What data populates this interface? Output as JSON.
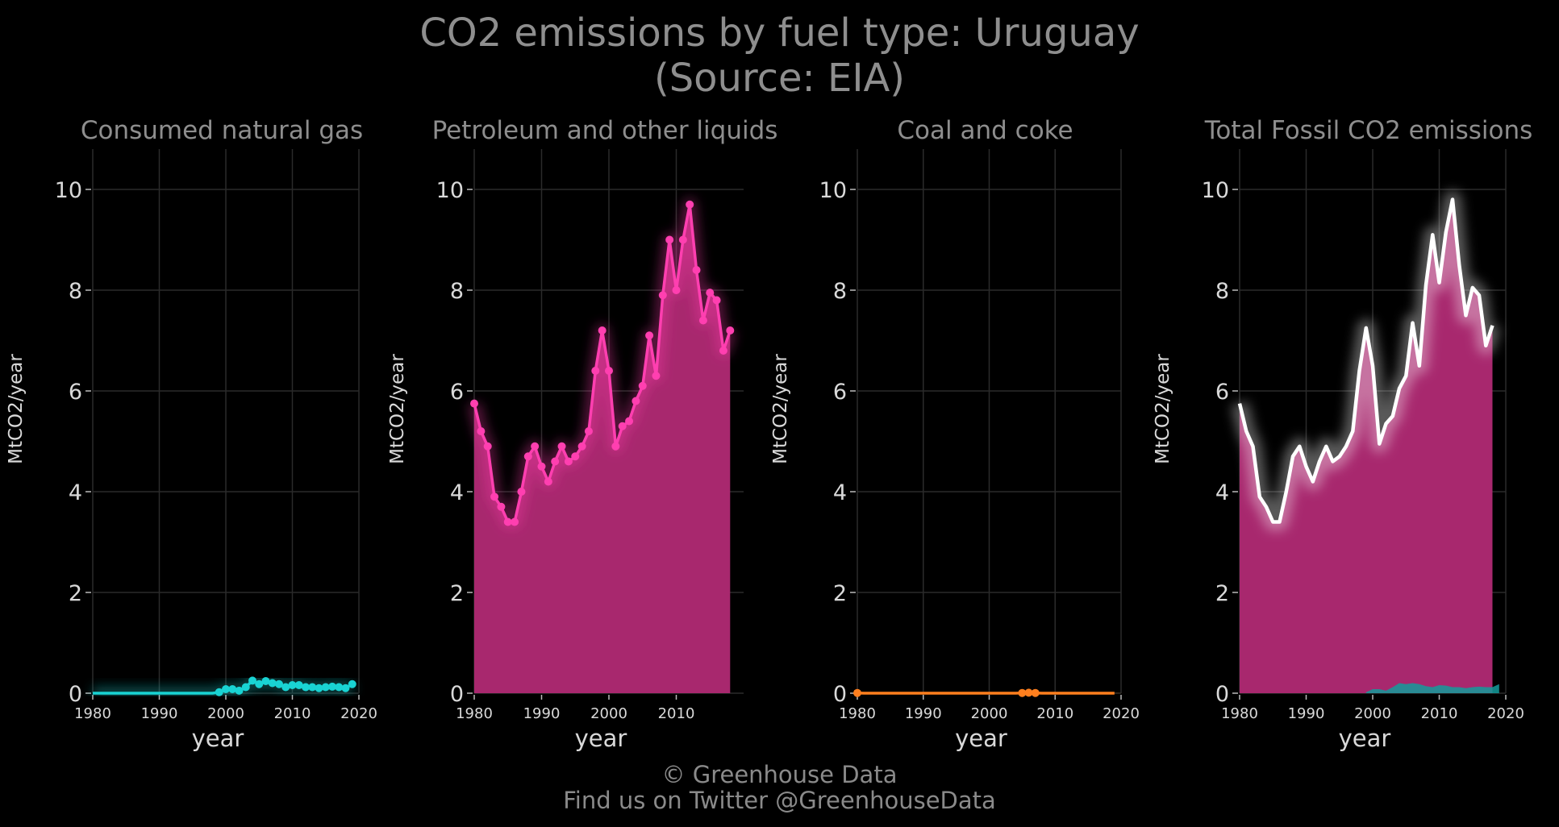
{
  "title_line1": "CO2 emissions by fuel type: Uruguay",
  "title_line2": "(Source: EIA)",
  "footer_line1": "© Greenhouse Data",
  "footer_line2": "Find us on Twitter @GreenhouseData",
  "colors": {
    "background": "#000000",
    "grid": "#2b2b2b",
    "text": "#8a8a8a",
    "tick_text": "#d9d9d9",
    "natural_gas": "#19d3d3",
    "petroleum": "#ff3fb0",
    "petroleum_fill": "#a8286e",
    "coal": "#ff7f1e",
    "total_line": "#ffffff"
  },
  "chart_data": [
    {
      "type": "line",
      "title": "Consumed natural gas",
      "xlabel": "year",
      "ylabel": "MtCO2/year",
      "xlim": [
        1980,
        2020
      ],
      "ylim": [
        0,
        10.8
      ],
      "xticks": [
        1980,
        1990,
        2000,
        2010,
        2020
      ],
      "yticks": [
        0,
        2,
        4,
        6,
        8,
        10
      ],
      "grid": true,
      "series": [
        {
          "color": "#19d3d3",
          "x": [
            1980,
            1981,
            1982,
            1983,
            1984,
            1985,
            1986,
            1987,
            1988,
            1989,
            1990,
            1991,
            1992,
            1993,
            1994,
            1995,
            1996,
            1997,
            1998,
            1999,
            2000,
            2001,
            2002,
            2003,
            2004,
            2005,
            2006,
            2007,
            2008,
            2009,
            2010,
            2011,
            2012,
            2013,
            2014,
            2015,
            2016,
            2017,
            2018,
            2019
          ],
          "y": [
            0,
            0,
            0,
            0,
            0,
            0,
            0,
            0,
            0,
            0,
            0,
            0,
            0,
            0,
            0,
            0,
            0,
            0,
            0,
            0.02,
            0.08,
            0.08,
            0.05,
            0.12,
            0.25,
            0.18,
            0.24,
            0.2,
            0.18,
            0.12,
            0.16,
            0.16,
            0.12,
            0.12,
            0.1,
            0.12,
            0.13,
            0.12,
            0.1,
            0.18
          ]
        }
      ]
    },
    {
      "type": "area",
      "title": "Petroleum and other liquids",
      "xlabel": "year",
      "ylabel": "MtCO2/year",
      "xlim": [
        1980,
        2020
      ],
      "ylim": [
        0,
        10.8
      ],
      "xticks": [
        1980,
        1990,
        2000,
        2010
      ],
      "yticks": [
        0,
        2,
        4,
        6,
        8,
        10
      ],
      "grid": true,
      "series": [
        {
          "color": "#ff3fb0",
          "x": [
            1980,
            1981,
            1982,
            1983,
            1984,
            1985,
            1986,
            1987,
            1988,
            1989,
            1990,
            1991,
            1992,
            1993,
            1994,
            1995,
            1996,
            1997,
            1998,
            1999,
            2000,
            2001,
            2002,
            2003,
            2004,
            2005,
            2006,
            2007,
            2008,
            2009,
            2010,
            2011,
            2012,
            2013,
            2014,
            2015,
            2016,
            2017,
            2018
          ],
          "y": [
            5.75,
            5.2,
            4.9,
            3.9,
            3.7,
            3.4,
            3.4,
            4.0,
            4.7,
            4.9,
            4.5,
            4.2,
            4.6,
            4.9,
            4.6,
            4.7,
            4.9,
            5.2,
            6.4,
            7.2,
            6.4,
            4.9,
            5.3,
            5.4,
            5.8,
            6.1,
            7.1,
            6.3,
            7.9,
            9.0,
            8.0,
            9.0,
            9.7,
            8.4,
            7.4,
            7.95,
            7.8,
            6.8,
            7.2
          ]
        }
      ]
    },
    {
      "type": "line",
      "title": "Coal and coke",
      "xlabel": "year",
      "ylabel": "MtCO2/year",
      "xlim": [
        1980,
        2020
      ],
      "ylim": [
        0,
        10.8
      ],
      "xticks": [
        1980,
        1990,
        2000,
        2010,
        2020
      ],
      "yticks": [
        0,
        2,
        4,
        6,
        8,
        10
      ],
      "grid": true,
      "series": [
        {
          "color": "#ff7f1e",
          "x": [
            1980,
            1981,
            1982,
            1983,
            1984,
            1985,
            1986,
            1987,
            1988,
            1989,
            1990,
            1991,
            1992,
            1993,
            1994,
            1995,
            1996,
            1997,
            1998,
            1999,
            2000,
            2001,
            2002,
            2003,
            2004,
            2005,
            2006,
            2007,
            2008,
            2009,
            2010,
            2011,
            2012,
            2013,
            2014,
            2015,
            2016,
            2017,
            2018,
            2019
          ],
          "y": [
            0.005,
            0,
            0,
            0,
            0,
            0,
            0,
            0,
            0,
            0,
            0,
            0,
            0,
            0,
            0,
            0,
            0,
            0,
            0,
            0,
            0,
            0,
            0,
            0,
            0,
            0.005,
            0.01,
            0.005,
            0,
            0,
            0,
            0,
            0,
            0,
            0,
            0,
            0,
            0,
            0,
            0
          ]
        }
      ]
    },
    {
      "type": "area",
      "title": "Total Fossil CO2 emissions",
      "xlabel": "year",
      "ylabel": "MtCO2/year",
      "xlim": [
        1980,
        2020
      ],
      "ylim": [
        0,
        10.8
      ],
      "xticks": [
        1980,
        1990,
        2000,
        2010,
        2020
      ],
      "yticks": [
        0,
        2,
        4,
        6,
        8,
        10
      ],
      "grid": true,
      "series": [
        {
          "color": "#ffffff",
          "x": [
            1980,
            1981,
            1982,
            1983,
            1984,
            1985,
            1986,
            1987,
            1988,
            1989,
            1990,
            1991,
            1992,
            1993,
            1994,
            1995,
            1996,
            1997,
            1998,
            1999,
            2000,
            2001,
            2002,
            2003,
            2004,
            2005,
            2006,
            2007,
            2008,
            2009,
            2010,
            2011,
            2012,
            2013,
            2014,
            2015,
            2016,
            2017,
            2018
          ],
          "y": [
            5.75,
            5.2,
            4.9,
            3.9,
            3.7,
            3.4,
            3.4,
            4.0,
            4.7,
            4.9,
            4.5,
            4.2,
            4.6,
            4.9,
            4.6,
            4.7,
            4.9,
            5.2,
            6.4,
            7.25,
            6.5,
            4.95,
            5.35,
            5.5,
            6.05,
            6.3,
            7.35,
            6.5,
            8.1,
            9.1,
            8.15,
            9.15,
            9.8,
            8.5,
            7.5,
            8.05,
            7.9,
            6.9,
            7.3
          ]
        },
        {
          "color": "#19d3d3",
          "x": [
            1999,
            2000,
            2001,
            2002,
            2003,
            2004,
            2005,
            2006,
            2007,
            2008,
            2009,
            2010,
            2011,
            2012,
            2013,
            2014,
            2015,
            2016,
            2017,
            2018,
            2019
          ],
          "y": [
            0.02,
            0.08,
            0.08,
            0.05,
            0.12,
            0.2,
            0.18,
            0.2,
            0.18,
            0.14,
            0.12,
            0.16,
            0.15,
            0.12,
            0.12,
            0.1,
            0.12,
            0.13,
            0.12,
            0.12,
            0.18
          ]
        }
      ]
    }
  ]
}
